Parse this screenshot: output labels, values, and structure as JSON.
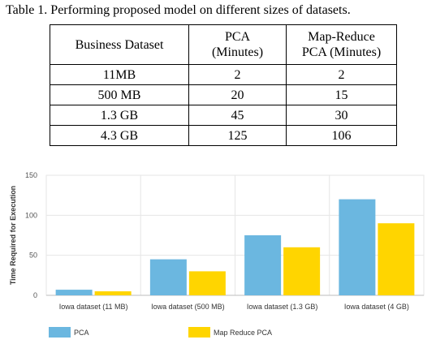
{
  "caption": "Table 1.  Performing proposed model on different sizes of datasets.",
  "table": {
    "headers": [
      [
        "Business Dataset"
      ],
      [
        "PCA",
        "(Minutes)"
      ],
      [
        "Map-Reduce",
        "PCA (Minutes)"
      ]
    ],
    "rows": [
      [
        "11MB",
        "2",
        "2"
      ],
      [
        "500 MB",
        "20",
        "15"
      ],
      [
        "1.3 GB",
        "45",
        "30"
      ],
      [
        "4.3 GB",
        "125",
        "106"
      ]
    ]
  },
  "chart_data": {
    "type": "bar",
    "categories": [
      "Iowa dataset (11 MB)",
      "Iowa dataset (500 MB)",
      "Iowa dataset (1.3 GB)",
      "Iowa dataset (4 GB)"
    ],
    "series": [
      {
        "name": "PCA",
        "values": [
          7,
          45,
          75,
          120
        ],
        "color": "#6bb7e0"
      },
      {
        "name": "Map Reduce PCA",
        "values": [
          5,
          30,
          60,
          90
        ],
        "color": "#ffd500"
      }
    ],
    "title": "",
    "xlabel": "",
    "ylabel": "Time Required for Execution",
    "ylim": [
      0,
      150
    ],
    "yticks": [
      0,
      50,
      100,
      150
    ],
    "grid": true,
    "legend_position": "bottom-left"
  }
}
